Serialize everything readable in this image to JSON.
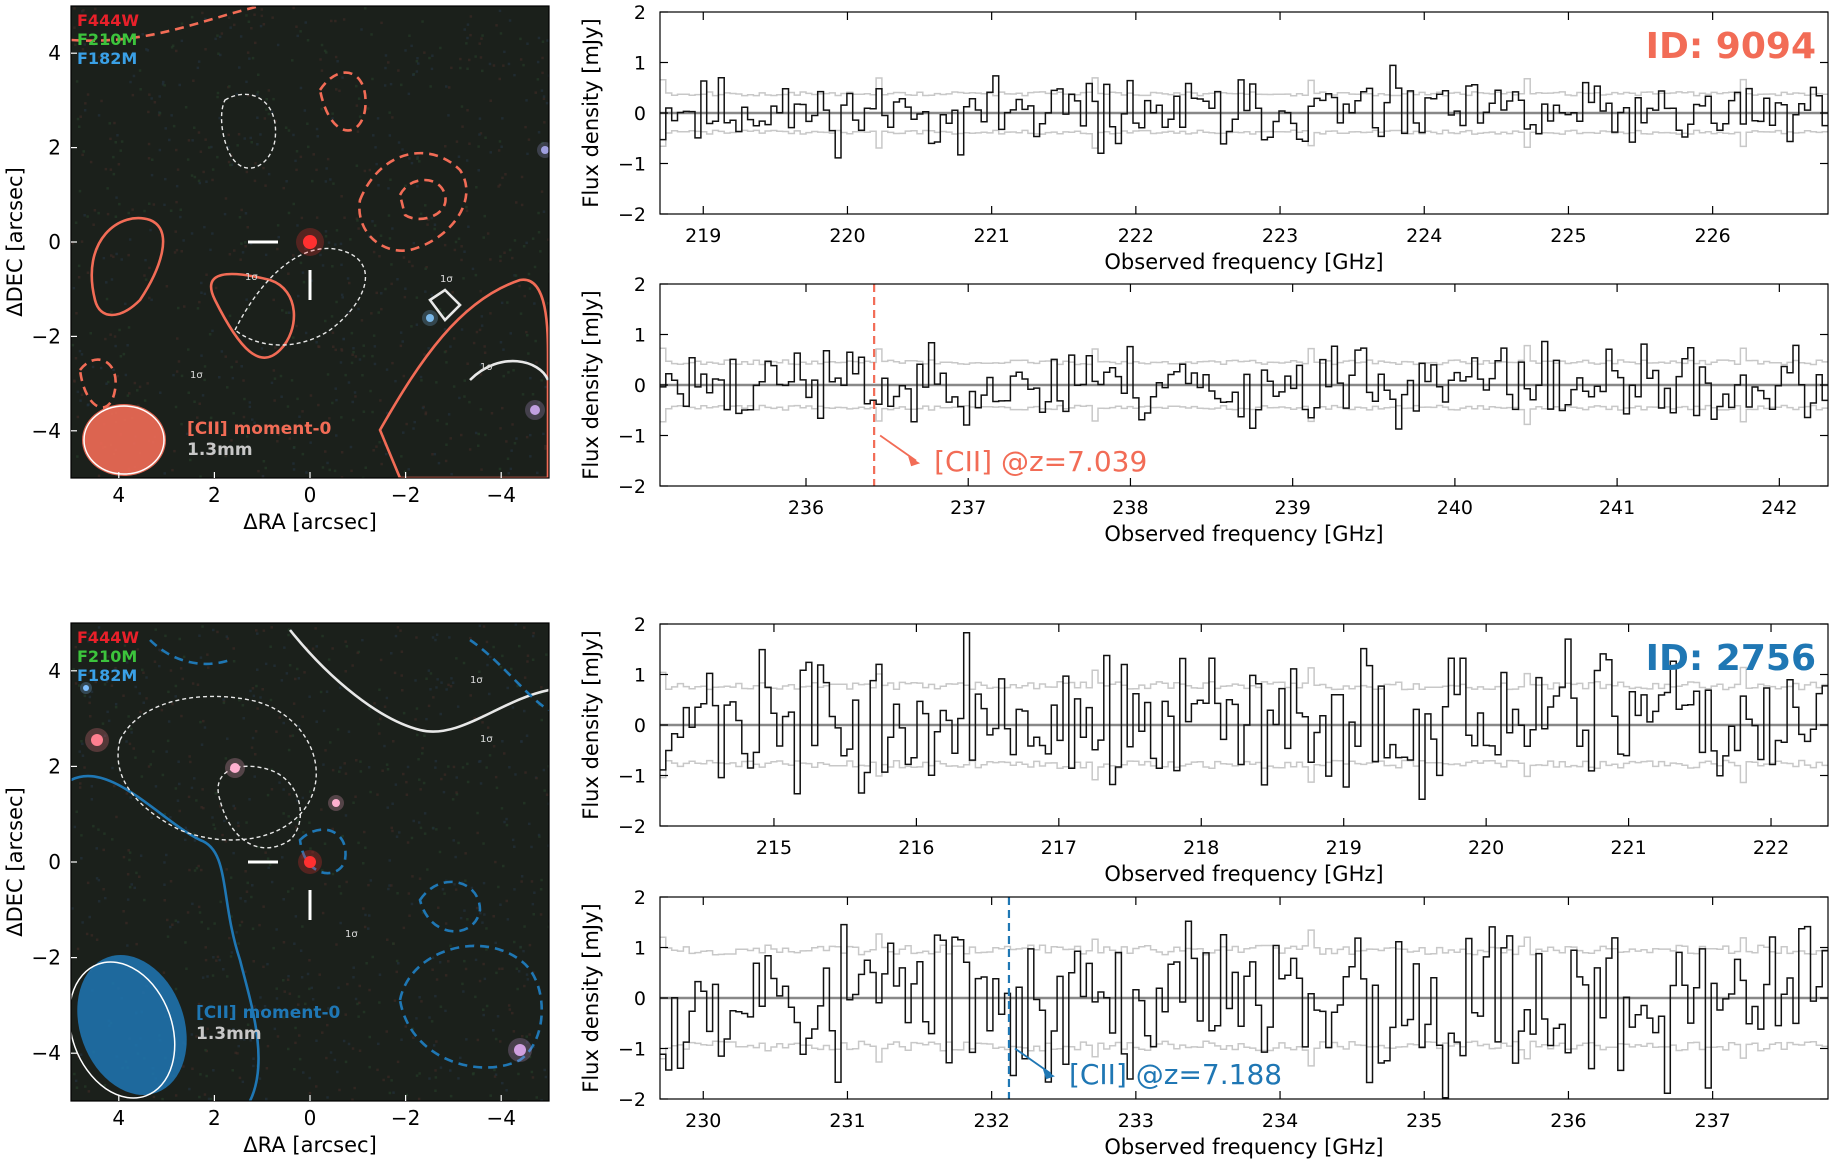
{
  "colors": {
    "object_a": "#f26c56",
    "object_b": "#1f77b4",
    "band_f444w": "#e8202a",
    "band_f210m": "#3cc43c",
    "band_f182m": "#3aa0e6",
    "spectrum": "#111111",
    "noise": "#c8c8c8",
    "baseline": "#888888"
  },
  "objects": [
    {
      "id_label": "ID: 9094",
      "color_key": "object_a",
      "image": {
        "xlabel": "ΔRA [arcsec]",
        "ylabel": "ΔDEC [arcsec]",
        "xticks": [
          "4",
          "2",
          "0",
          "−2",
          "−4"
        ],
        "yticks": [
          "4",
          "2",
          "0",
          "−2",
          "−4"
        ],
        "bands": [
          "F444W",
          "F210M",
          "F182M"
        ],
        "legend_line1": "[CII] moment-0",
        "legend_line2": "1.3mm",
        "contour_label": "1σ"
      },
      "spectrum_panels": [
        {
          "xlabel": "Observed frequency [GHz]",
          "ylabel": "Flux density [mJy]",
          "xlim": [
            218.7,
            226.8
          ],
          "ylim": [
            -2,
            2
          ],
          "xticks": [
            "219",
            "220",
            "221",
            "222",
            "223",
            "224",
            "225",
            "226"
          ],
          "yticks": [
            "−2",
            "−1",
            "0",
            "1",
            "2"
          ],
          "line_annotation": ""
        },
        {
          "xlabel": "Observed frequency [GHz]",
          "ylabel": "Flux density [mJy]",
          "xlim": [
            235.1,
            242.3
          ],
          "ylim": [
            -2,
            2
          ],
          "xticks": [
            "236",
            "237",
            "238",
            "239",
            "240",
            "241",
            "242"
          ],
          "yticks": [
            "−2",
            "−1",
            "0",
            "1",
            "2"
          ],
          "line_freq": 236.42,
          "line_annotation": "[CII] @z=7.039"
        }
      ]
    },
    {
      "id_label": "ID: 2756",
      "color_key": "object_b",
      "image": {
        "xlabel": "ΔRA [arcsec]",
        "ylabel": "ΔDEC [arcsec]",
        "xticks": [
          "4",
          "2",
          "0",
          "−2",
          "−4"
        ],
        "yticks": [
          "4",
          "2",
          "0",
          "−2",
          "−4"
        ],
        "bands": [
          "F444W",
          "F210M",
          "F182M"
        ],
        "legend_line1": "[CII] moment-0",
        "legend_line2": "1.3mm",
        "contour_label": "1σ"
      },
      "spectrum_panels": [
        {
          "xlabel": "Observed frequency [GHz]",
          "ylabel": "Flux density [mJy]",
          "xlim": [
            214.2,
            222.4
          ],
          "ylim": [
            -2,
            2
          ],
          "xticks": [
            "215",
            "216",
            "217",
            "218",
            "219",
            "220",
            "221",
            "222"
          ],
          "yticks": [
            "−2",
            "−1",
            "0",
            "1",
            "2"
          ],
          "line_annotation": ""
        },
        {
          "xlabel": "Observed frequency [GHz]",
          "ylabel": "Flux density [mJy]",
          "xlim": [
            229.7,
            237.8
          ],
          "ylim": [
            -2,
            2
          ],
          "xticks": [
            "230",
            "231",
            "232",
            "233",
            "234",
            "235",
            "236",
            "237"
          ],
          "yticks": [
            "−2",
            "−1",
            "0",
            "1",
            "2"
          ],
          "line_freq": 232.12,
          "line_annotation": "[CII] @z=7.188"
        }
      ]
    }
  ],
  "chart_data": [
    {
      "type": "line",
      "title": "",
      "xlabel": "Observed frequency [GHz]",
      "ylabel": "Flux density [mJy]",
      "xlim": [
        218.7,
        226.8
      ],
      "ylim": [
        -2,
        2
      ],
      "grid": false,
      "noise_rms": 0.38,
      "amplitude": 0.3,
      "seed": 11
    },
    {
      "type": "line",
      "title": "",
      "xlabel": "Observed frequency [GHz]",
      "ylabel": "Flux density [mJy]",
      "xlim": [
        235.1,
        242.3
      ],
      "ylim": [
        -2,
        2
      ],
      "grid": false,
      "noise_rms": 0.45,
      "amplitude": 0.35,
      "seed": 23,
      "annotation": "[CII] @z=7.039",
      "line_freq": 236.42
    },
    {
      "type": "line",
      "title": "",
      "xlabel": "Observed frequency [GHz]",
      "ylabel": "Flux density [mJy]",
      "xlim": [
        214.2,
        222.4
      ],
      "ylim": [
        -2,
        2
      ],
      "grid": false,
      "noise_rms": 0.78,
      "amplitude": 0.6,
      "seed": 37
    },
    {
      "type": "line",
      "title": "",
      "xlabel": "Observed frequency [GHz]",
      "ylabel": "Flux density [mJy]",
      "xlim": [
        229.7,
        237.8
      ],
      "ylim": [
        -2,
        2
      ],
      "grid": false,
      "noise_rms": 0.95,
      "amplitude": 0.75,
      "seed": 53,
      "annotation": "[CII] @z=7.188",
      "line_freq": 232.12
    }
  ]
}
